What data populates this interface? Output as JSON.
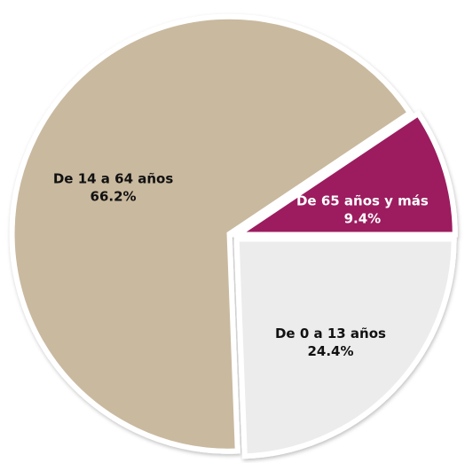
{
  "chart_data": {
    "type": "pie",
    "categories": [
      "De 0 a 13 años",
      "De 14 a 64 años",
      "De 65 años y más"
    ],
    "values": [
      24.4,
      66.2,
      9.4
    ],
    "value_labels": [
      "24.4%",
      "66.2%",
      "9.4%"
    ],
    "colors": [
      "#ececec",
      "#c9b99f",
      "#9c1a5f"
    ],
    "label_colors": [
      "#111111",
      "#111111",
      "#ffffff"
    ]
  }
}
